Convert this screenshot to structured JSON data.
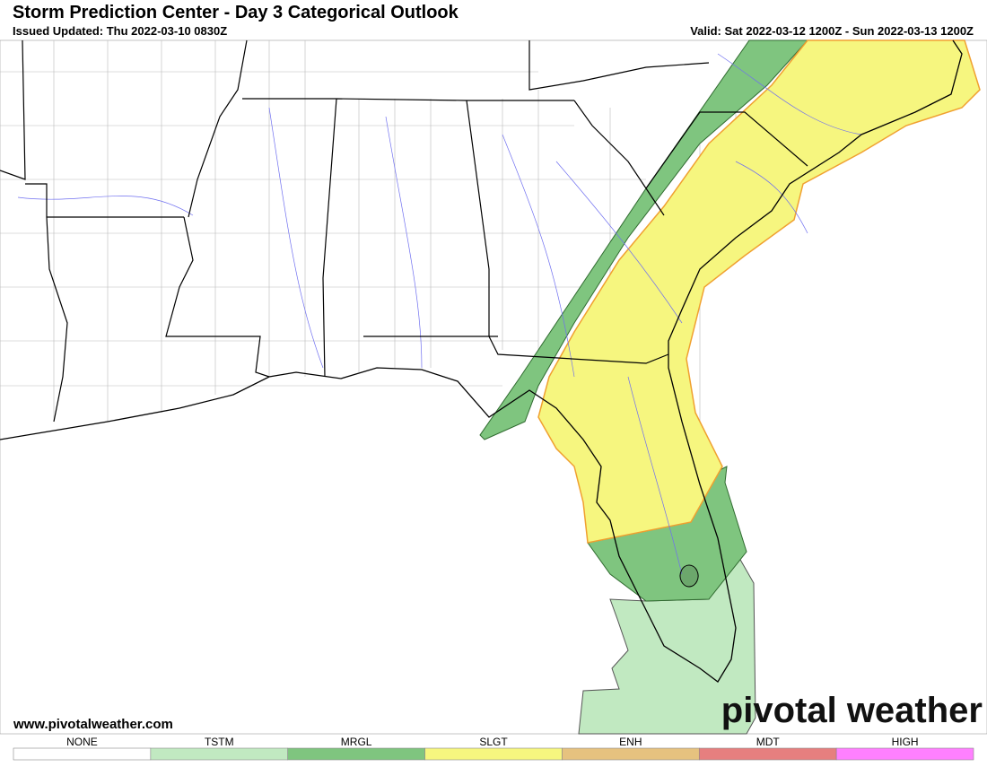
{
  "header": {
    "title": "Storm Prediction Center - Day 3 Categorical Outlook",
    "issued": "Issued Updated: Thu 2022-03-10 0830Z",
    "valid": "Valid: Sat 2022-03-12 1200Z - Sun 2022-03-13 1200Z"
  },
  "map": {
    "website": "www.pivotalweather.com",
    "watermark": "pivotal weather"
  },
  "legend": [
    {
      "label": "NONE",
      "color": "#ffffff"
    },
    {
      "label": "TSTM",
      "color": "#c1e9c1"
    },
    {
      "label": "MRGL",
      "color": "#7fc57f"
    },
    {
      "label": "SLGT",
      "color": "#f6f67f"
    },
    {
      "label": "ENH",
      "color": "#e6c27f"
    },
    {
      "label": "MDT",
      "color": "#e67f7f"
    },
    {
      "label": "HIGH",
      "color": "#ff80ff"
    }
  ]
}
